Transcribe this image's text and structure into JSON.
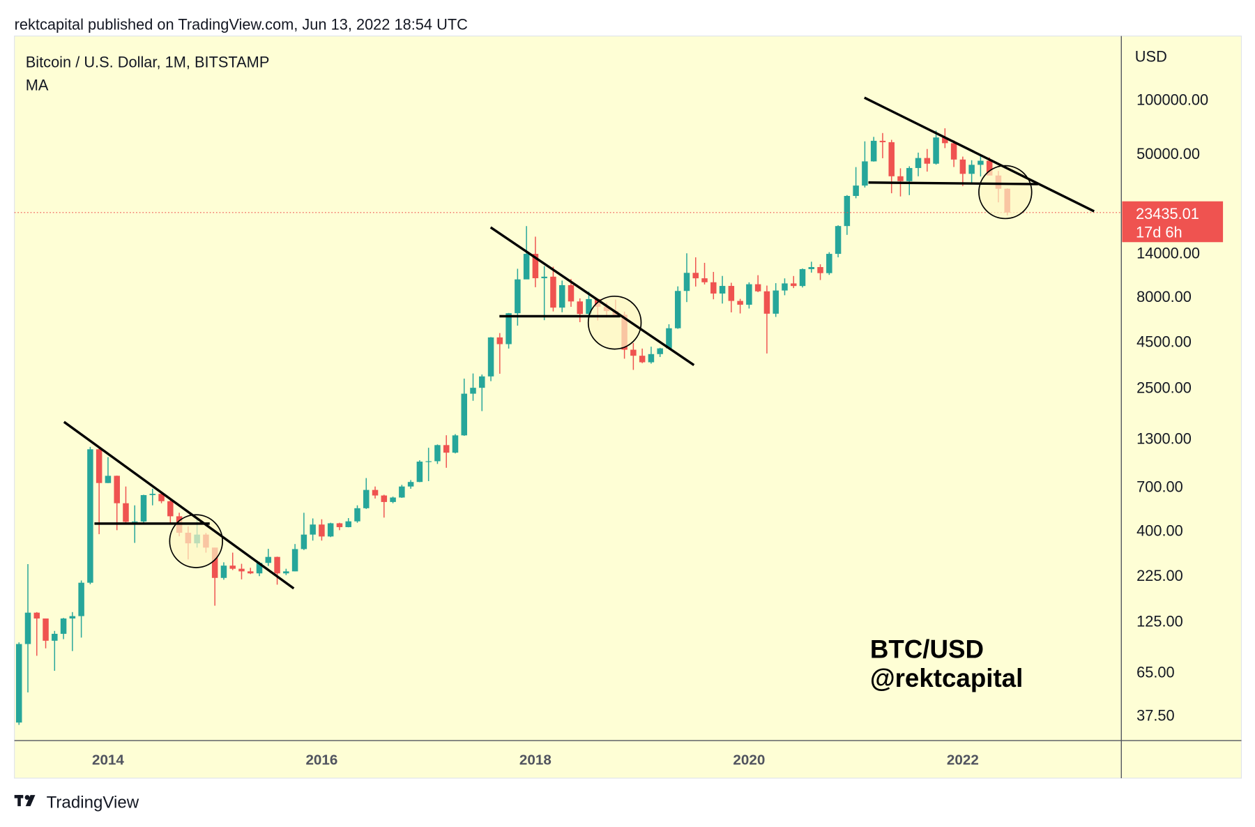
{
  "header": {
    "byline": "rektcapital published on TradingView.com, Jun 13, 2022 18:54 UTC"
  },
  "footer": {
    "brand": "TradingView"
  },
  "chart_data": {
    "type": "candlestick",
    "title": "Bitcoin / U.S. Dollar, 1M, BITSTAMP",
    "subtitle": "MA",
    "y_unit": "USD",
    "log_scale": true,
    "grid": false,
    "up_color": "#26a69a",
    "down_color": "#ef5350",
    "annotations": [
      "BTC/USD",
      "@rektcapital"
    ],
    "last_price": 23435.01,
    "countdown": "17d 6h",
    "xlim": [
      "2013-02",
      "2023-06"
    ],
    "xticks": [
      2014,
      2016,
      2018,
      2020,
      2022
    ],
    "ylim": [
      27,
      225000
    ],
    "yticks": [
      {
        "value": 37.5,
        "label": "37.50"
      },
      {
        "value": 65,
        "label": "65.00"
      },
      {
        "value": 125,
        "label": "125.00"
      },
      {
        "value": 225,
        "label": "225.00"
      },
      {
        "value": 400,
        "label": "400.00"
      },
      {
        "value": 700,
        "label": "700.00"
      },
      {
        "value": 1300,
        "label": "1300.00"
      },
      {
        "value": 2500,
        "label": "2500.00"
      },
      {
        "value": 4500,
        "label": "4500.00"
      },
      {
        "value": 8000,
        "label": "8000.00"
      },
      {
        "value": 14000,
        "label": "14000.00"
      },
      {
        "value": 50000,
        "label": "50000.00"
      },
      {
        "value": 100000,
        "label": "100000.00"
      }
    ],
    "x": [
      "2013-03",
      "2013-04",
      "2013-05",
      "2013-06",
      "2013-07",
      "2013-08",
      "2013-09",
      "2013-10",
      "2013-11",
      "2013-12",
      "2014-01",
      "2014-02",
      "2014-03",
      "2014-04",
      "2014-05",
      "2014-06",
      "2014-07",
      "2014-08",
      "2014-09",
      "2014-10",
      "2014-11",
      "2014-12",
      "2015-01",
      "2015-02",
      "2015-03",
      "2015-04",
      "2015-05",
      "2015-06",
      "2015-07",
      "2015-08",
      "2015-09",
      "2015-10",
      "2015-11",
      "2015-12",
      "2016-01",
      "2016-02",
      "2016-03",
      "2016-04",
      "2016-05",
      "2016-06",
      "2016-07",
      "2016-08",
      "2016-09",
      "2016-10",
      "2016-11",
      "2016-12",
      "2017-01",
      "2017-02",
      "2017-03",
      "2017-04",
      "2017-05",
      "2017-06",
      "2017-07",
      "2017-08",
      "2017-09",
      "2017-10",
      "2017-11",
      "2017-12",
      "2018-01",
      "2018-02",
      "2018-03",
      "2018-04",
      "2018-05",
      "2018-06",
      "2018-07",
      "2018-08",
      "2018-09",
      "2018-10",
      "2018-11",
      "2018-12",
      "2019-01",
      "2019-02",
      "2019-03",
      "2019-04",
      "2019-05",
      "2019-06",
      "2019-07",
      "2019-08",
      "2019-09",
      "2019-10",
      "2019-11",
      "2019-12",
      "2020-01",
      "2020-02",
      "2020-03",
      "2020-04",
      "2020-05",
      "2020-06",
      "2020-07",
      "2020-08",
      "2020-09",
      "2020-10",
      "2020-11",
      "2020-12",
      "2021-01",
      "2021-02",
      "2021-03",
      "2021-04",
      "2021-05",
      "2021-06",
      "2021-07",
      "2021-08",
      "2021-09",
      "2021-10",
      "2021-11",
      "2021-12",
      "2022-01",
      "2022-02",
      "2022-03",
      "2022-04",
      "2022-05",
      "2022-06"
    ],
    "open": [
      34,
      93,
      139,
      129,
      97,
      106,
      129,
      133,
      204,
      1128,
      732,
      803,
      565,
      445,
      447,
      627,
      637,
      580,
      478,
      387,
      338,
      378,
      320,
      217,
      254,
      244,
      236,
      230,
      263,
      284,
      230,
      236,
      314,
      378,
      430,
      369,
      437,
      416,
      448,
      530,
      670,
      624,
      574,
      608,
      700,
      742,
      963,
      968,
      1190,
      1080,
      1348,
      2300,
      2480,
      2870,
      4730,
      4340,
      6450,
      9950,
      13800,
      10100,
      10300,
      6930,
      9240,
      7500,
      6390,
      7730,
      7010,
      6630,
      6320,
      4040,
      3740,
      3440,
      3820,
      4110,
      5320,
      8580,
      10820,
      10090,
      9590,
      8300,
      9150,
      7550,
      7190,
      9350,
      8540,
      6410,
      8630,
      9450,
      9140,
      11350,
      11650,
      10780,
      13800,
      19710,
      28990,
      33110,
      45140,
      58760,
      57720,
      37300,
      35040,
      41460,
      47130,
      43820,
      61320,
      57000,
      46210,
      38480,
      43190,
      45510,
      37660,
      31790
    ],
    "high": [
      95,
      259,
      140,
      129,
      110,
      130,
      140,
      210,
      1163,
      1163,
      1020,
      805,
      700,
      550,
      630,
      680,
      650,
      600,
      500,
      420,
      458,
      386,
      320,
      265,
      300,
      260,
      247,
      267,
      315,
      285,
      244,
      335,
      500,
      465,
      460,
      440,
      440,
      467,
      550,
      780,
      700,
      630,
      615,
      715,
      760,
      980,
      1150,
      1200,
      1350,
      1370,
      2790,
      2980,
      2940,
      4750,
      5000,
      6470,
      11400,
      19700,
      17200,
      11800,
      11700,
      9800,
      10000,
      7800,
      8500,
      7760,
      7400,
      7680,
      6580,
      4400,
      4100,
      4200,
      4140,
      5600,
      9100,
      13900,
      13200,
      12300,
      10950,
      10400,
      9530,
      7750,
      9580,
      10500,
      9190,
      9480,
      10080,
      10390,
      11440,
      12480,
      12070,
      14100,
      19900,
      29300,
      41950,
      58350,
      61790,
      64900,
      59500,
      41300,
      42400,
      50500,
      52900,
      67000,
      69000,
      59100,
      47990,
      45800,
      48200,
      47440,
      39900,
      31950
    ],
    "low": [
      33,
      50,
      80,
      88,
      66,
      99,
      85,
      101,
      200,
      380,
      731,
      400,
      440,
      340,
      440,
      550,
      565,
      440,
      370,
      275,
      320,
      300,
      152,
      212,
      240,
      213,
      228,
      222,
      253,
      199,
      225,
      236,
      310,
      350,
      350,
      366,
      400,
      415,
      440,
      525,
      600,
      470,
      565,
      605,
      680,
      740,
      750,
      935,
      890,
      1070,
      1340,
      2100,
      1840,
      2700,
      2970,
      4100,
      5500,
      10900,
      9000,
      5900,
      6600,
      6530,
      7000,
      5750,
      6070,
      5880,
      6100,
      6180,
      3600,
      3120,
      3400,
      3380,
      3680,
      4070,
      5280,
      7440,
      9080,
      9320,
      7710,
      7300,
      6520,
      6430,
      6850,
      8450,
      3850,
      6150,
      8120,
      8900,
      8970,
      10850,
      9870,
      10540,
      13200,
      17600,
      28130,
      32300,
      45000,
      47000,
      30000,
      28800,
      29300,
      37300,
      39600,
      43300,
      53500,
      42000,
      32900,
      34300,
      37200,
      37700,
      26700,
      22600
    ],
    "close": [
      93,
      139,
      129,
      97,
      106,
      129,
      133,
      204,
      1128,
      732,
      803,
      565,
      445,
      447,
      627,
      637,
      580,
      478,
      387,
      338,
      378,
      320,
      217,
      254,
      244,
      236,
      230,
      263,
      284,
      230,
      236,
      314,
      378,
      430,
      369,
      437,
      416,
      448,
      530,
      670,
      624,
      574,
      608,
      700,
      742,
      963,
      968,
      1190,
      1080,
      1348,
      2300,
      2480,
      2870,
      4730,
      4340,
      6450,
      9950,
      13800,
      10100,
      10300,
      6930,
      9240,
      7500,
      6390,
      7730,
      7010,
      6630,
      6320,
      4040,
      3740,
      3440,
      3820,
      4110,
      5320,
      8580,
      10820,
      10090,
      9590,
      8300,
      9150,
      7550,
      7190,
      9350,
      8540,
      6410,
      8630,
      9450,
      9140,
      11350,
      11650,
      10780,
      13800,
      19710,
      28990,
      33110,
      45140,
      58760,
      57720,
      37300,
      35040,
      41460,
      47130,
      43820,
      61320,
      57000,
      46210,
      38480,
      43190,
      45510,
      37660,
      31790,
      23435.01
    ]
  }
}
